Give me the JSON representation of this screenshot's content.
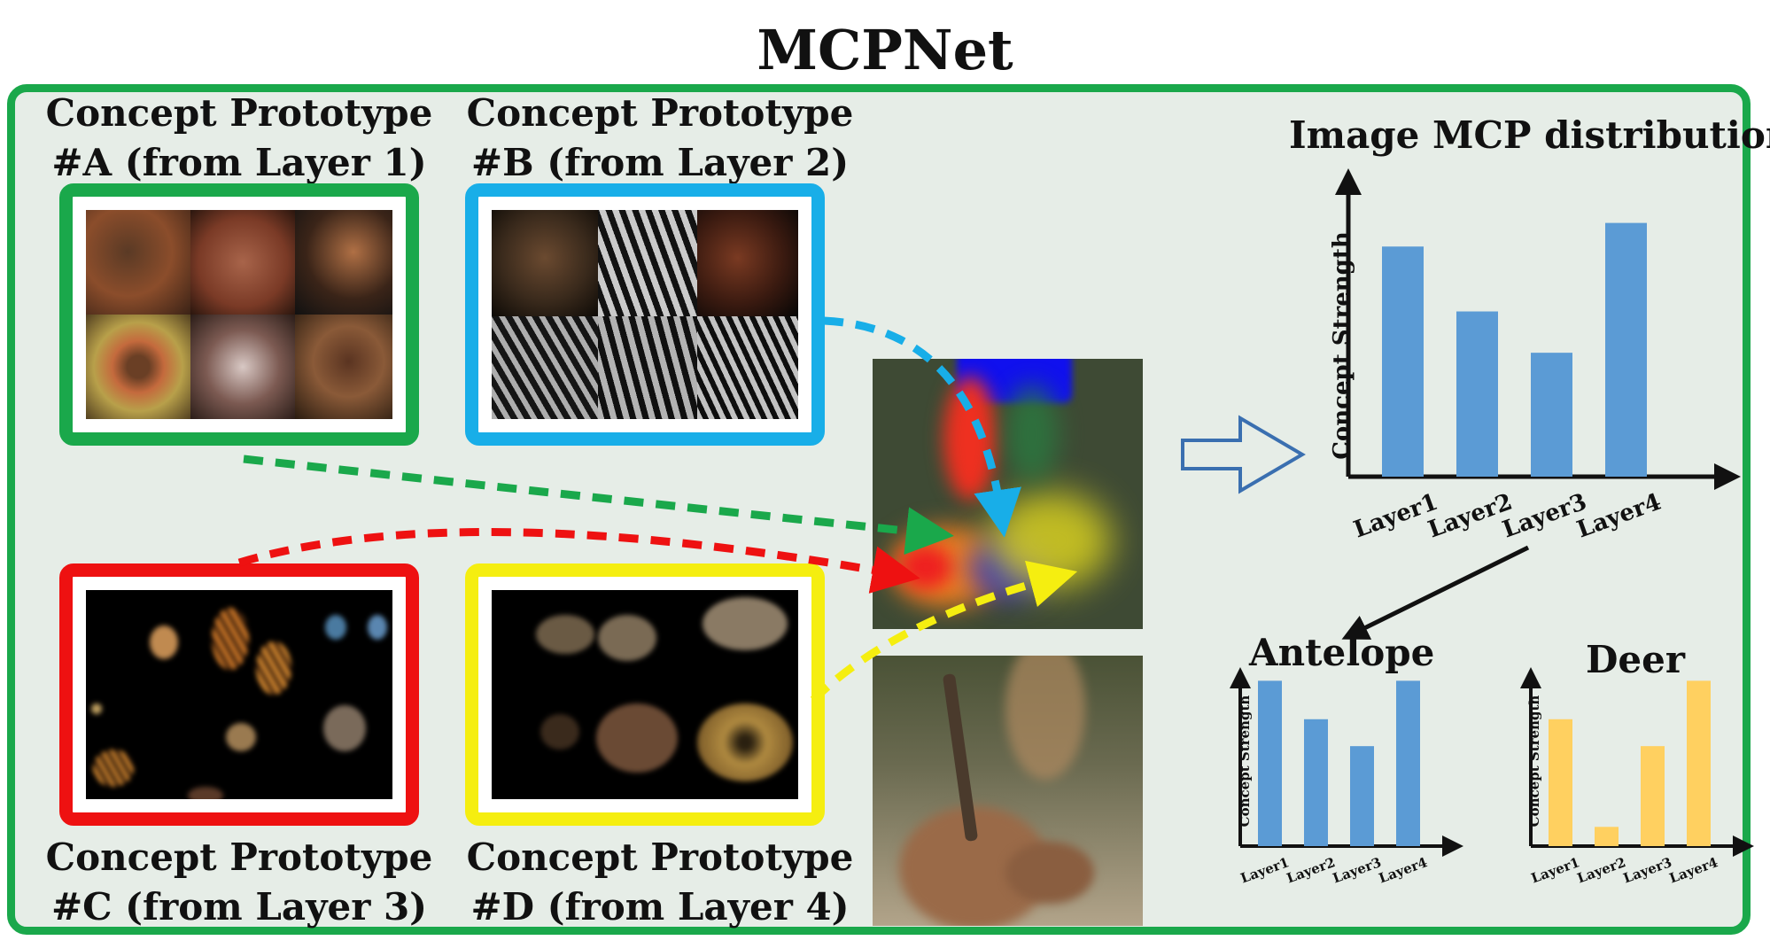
{
  "title": "MCPNet",
  "prototypes": {
    "a": {
      "line1": "Concept Prototype",
      "line2": "#A (from Layer 1)",
      "color": "#1aa84b"
    },
    "b": {
      "line1": "Concept Prototype",
      "line2": "#B (from Layer 2)",
      "color": "#18aee8"
    },
    "c": {
      "line1": "Concept Prototype",
      "line2": "#C (from Layer 3)",
      "color": "#ee1111"
    },
    "d": {
      "line1": "Concept Prototype",
      "line2": "#D (from Layer 4)",
      "color": "#f5ee10"
    }
  },
  "chart_data": [
    {
      "type": "bar",
      "title": "Image MCP distribution",
      "ylabel": "Concept Strength",
      "categories": [
        "Layer1",
        "Layer2",
        "Layer3",
        "Layer4"
      ],
      "values": [
        0.78,
        0.56,
        0.42,
        0.86
      ],
      "ylim": [
        0,
        1
      ],
      "color": "#5b9bd5"
    },
    {
      "type": "bar",
      "title": "Antelope",
      "ylabel": "Concept Strength",
      "categories": [
        "Layer1",
        "Layer2",
        "Layer3",
        "Layer4"
      ],
      "values": [
        0.86,
        0.66,
        0.52,
        0.86
      ],
      "ylim": [
        0,
        1
      ],
      "color": "#5b9bd5"
    },
    {
      "type": "bar",
      "title": "Deer",
      "ylabel": "Concept Strength",
      "categories": [
        "Layer1",
        "Layer2",
        "Layer3",
        "Layer4"
      ],
      "values": [
        0.66,
        0.1,
        0.52,
        0.86
      ],
      "ylim": [
        0,
        1
      ],
      "color": "#ffd060"
    }
  ]
}
